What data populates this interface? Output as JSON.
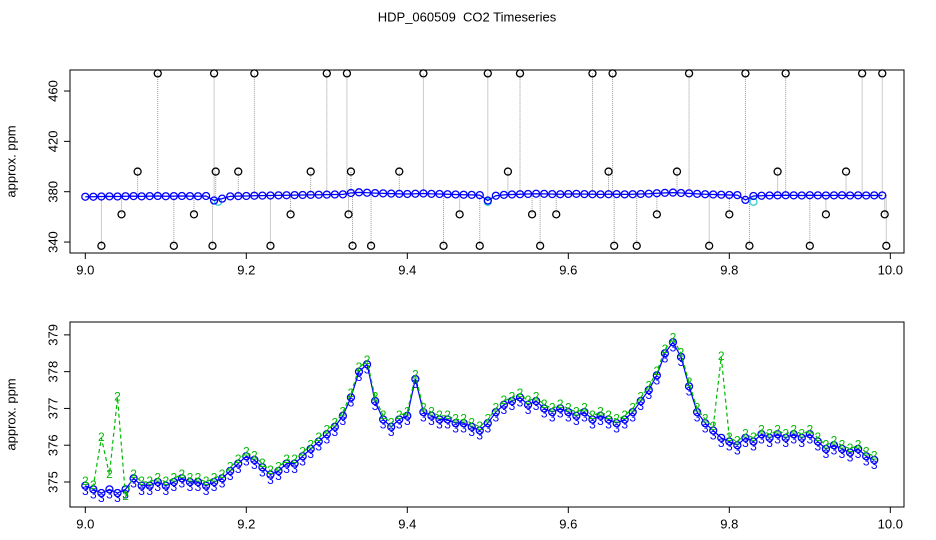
{
  "title": "HDP_060509  CO2 Timeseries",
  "chart_data": [
    {
      "type": "scatter",
      "ylabel": "approx. ppm",
      "xlim": [
        8.981,
        10.017
      ],
      "ylim": [
        331.3,
        476.7
      ],
      "xticks": [
        {
          "value": 9,
          "label": "9.0"
        },
        9.2,
        9.4,
        9.6,
        9.8,
        {
          "value": 10,
          "label": "10.0"
        }
      ],
      "yticks": [
        340,
        380,
        420,
        460
      ],
      "series": [
        {
          "color": "#0000ff",
          "marker": "circle",
          "line": "solid",
          "x": [
            9,
            9.01,
            9.02,
            9.03,
            9.04,
            9.05,
            9.06,
            9.07,
            9.08,
            9.09,
            9.1,
            9.11,
            9.12,
            9.13,
            9.14,
            9.15,
            9.16,
            9.17,
            9.18,
            9.19,
            9.2,
            9.21,
            9.22,
            9.23,
            9.24,
            9.25,
            9.26,
            9.27,
            9.28,
            9.29,
            9.3,
            9.31,
            9.32,
            9.33,
            9.34,
            9.35,
            9.36,
            9.37,
            9.38,
            9.39,
            9.4,
            9.41,
            9.42,
            9.43,
            9.44,
            9.45,
            9.46,
            9.47,
            9.48,
            9.49,
            9.5,
            9.51,
            9.52,
            9.53,
            9.54,
            9.55,
            9.56,
            9.57,
            9.58,
            9.59,
            9.6,
            9.61,
            9.62,
            9.63,
            9.64,
            9.65,
            9.66,
            9.67,
            9.68,
            9.69,
            9.7,
            9.71,
            9.72,
            9.73,
            9.74,
            9.75,
            9.76,
            9.77,
            9.78,
            9.79,
            9.8,
            9.81,
            9.82,
            9.83,
            9.84,
            9.85,
            9.86,
            9.87,
            9.88,
            9.89,
            9.9,
            9.91,
            9.92,
            9.93,
            9.94,
            9.95,
            9.96,
            9.97,
            9.98,
            9.99
          ],
          "values": [
            376,
            376,
            376.2,
            376.3,
            376.2,
            376.4,
            376.5,
            376.3,
            376.5,
            376.6,
            376.4,
            376.5,
            376.6,
            376.5,
            376.4,
            376.6,
            373,
            374.5,
            376.3,
            376.5,
            376.6,
            376.8,
            376.9,
            377,
            377.1,
            377.2,
            377.3,
            377.4,
            377.5,
            377.6,
            377.7,
            377.8,
            377.9,
            379,
            379.5,
            379.2,
            378.9,
            378.7,
            378.5,
            378.3,
            378.2,
            378.4,
            378.6,
            378.3,
            378.2,
            378,
            377.8,
            377.6,
            377.5,
            377.3,
            373,
            376.8,
            377.5,
            377.8,
            378,
            378.2,
            378.4,
            378.3,
            378.1,
            378,
            378.2,
            378.3,
            378.1,
            378,
            377.9,
            378,
            378.1,
            377.9,
            378,
            378.2,
            378.4,
            378.8,
            379.1,
            379.3,
            379,
            378.7,
            378.3,
            378,
            377.8,
            377.6,
            377.4,
            377.3,
            373.5,
            376.6,
            376.8,
            377,
            377.1,
            377.2,
            377.1,
            377,
            377.2,
            377.1,
            377,
            377.1,
            377.2,
            377,
            377.1,
            377,
            377.1,
            377
          ]
        },
        {
          "color": "#000000",
          "marker": "circle",
          "line": null,
          "stems": "#999999",
          "x": [
            9.02,
            9.045,
            9.065,
            9.09,
            9.11,
            9.135,
            9.16,
            9.158,
            9.162,
            9.19,
            9.21,
            9.23,
            9.255,
            9.28,
            9.3,
            9.325,
            9.327,
            9.33,
            9.332,
            9.355,
            9.39,
            9.42,
            9.445,
            9.465,
            9.49,
            9.5,
            9.525,
            9.54,
            9.555,
            9.565,
            9.585,
            9.63,
            9.65,
            9.655,
            9.657,
            9.685,
            9.71,
            9.735,
            9.75,
            9.775,
            9.8,
            9.82,
            9.825,
            9.86,
            9.87,
            9.9,
            9.92,
            9.945,
            9.965,
            9.99,
            9.993,
            9.995
          ],
          "values": [
            337,
            362,
            396,
            474,
            337,
            362,
            474,
            337,
            396,
            396,
            474,
            337,
            362,
            396,
            474,
            474,
            362,
            396,
            337,
            337,
            396,
            474,
            337,
            362,
            337,
            474,
            396,
            474,
            362,
            337,
            362,
            474,
            396,
            474,
            337,
            337,
            362,
            396,
            474,
            337,
            362,
            474,
            337,
            396,
            474,
            337,
            362,
            396,
            474,
            474,
            362,
            337
          ]
        },
        {
          "color": "#33cccc",
          "marker": "circle",
          "line": null,
          "x": [
            9.165,
            9.5,
            9.83
          ],
          "values": [
            372,
            372,
            372
          ]
        }
      ]
    },
    {
      "type": "line",
      "ylabel": "approx. ppm",
      "xlim": [
        8.981,
        10.017
      ],
      "ylim": [
        374.32,
        379.35
      ],
      "xticks": [
        {
          "value": 9,
          "label": "9.0"
        },
        9.2,
        9.4,
        9.6,
        9.8,
        {
          "value": 10,
          "label": "10.0"
        }
      ],
      "yticks": [
        375,
        376,
        377,
        378,
        379
      ],
      "x": [
        9,
        9.01,
        9.02,
        9.03,
        9.04,
        9.05,
        9.06,
        9.07,
        9.08,
        9.09,
        9.1,
        9.11,
        9.12,
        9.13,
        9.14,
        9.15,
        9.16,
        9.17,
        9.18,
        9.19,
        9.2,
        9.21,
        9.22,
        9.23,
        9.24,
        9.25,
        9.26,
        9.27,
        9.28,
        9.29,
        9.3,
        9.31,
        9.32,
        9.33,
        9.34,
        9.35,
        9.36,
        9.37,
        9.38,
        9.39,
        9.4,
        9.41,
        9.42,
        9.43,
        9.44,
        9.45,
        9.46,
        9.47,
        9.48,
        9.49,
        9.5,
        9.51,
        9.52,
        9.53,
        9.54,
        9.55,
        9.56,
        9.57,
        9.58,
        9.59,
        9.6,
        9.61,
        9.62,
        9.63,
        9.64,
        9.65,
        9.66,
        9.67,
        9.68,
        9.69,
        9.7,
        9.71,
        9.72,
        9.73,
        9.74,
        9.75,
        9.76,
        9.77,
        9.78,
        9.79,
        9.8,
        9.81,
        9.82,
        9.83,
        9.84,
        9.85,
        9.86,
        9.87,
        9.88,
        9.89,
        9.9,
        9.91,
        9.92,
        9.93,
        9.94,
        9.95,
        9.96,
        9.97,
        9.98
      ],
      "series": [
        {
          "color": "#00bb00",
          "marker": null,
          "marker_label": "2",
          "line": "dashed",
          "values": [
            375.0,
            374.9,
            376.2,
            375.2,
            377.3,
            374.6,
            375.2,
            375.0,
            375.0,
            375.1,
            375.0,
            375.1,
            375.2,
            375.1,
            375.1,
            375.0,
            375.1,
            375.2,
            375.4,
            375.6,
            375.8,
            375.7,
            375.5,
            375.3,
            375.4,
            375.6,
            375.6,
            375.8,
            376.0,
            376.2,
            376.4,
            376.6,
            376.9,
            377.4,
            378.1,
            378.3,
            377.3,
            376.8,
            376.6,
            376.8,
            376.9,
            377.9,
            377.0,
            376.9,
            376.8,
            376.8,
            376.7,
            376.7,
            376.6,
            376.5,
            376.7,
            377.0,
            377.2,
            377.3,
            377.4,
            377.2,
            377.3,
            377.1,
            377.0,
            377.1,
            377.0,
            376.9,
            377.0,
            376.8,
            376.9,
            376.8,
            376.7,
            376.8,
            377.0,
            377.3,
            377.6,
            378.0,
            378.6,
            378.9,
            378.5,
            377.7,
            377.0,
            376.7,
            376.5,
            378.4,
            376.2,
            376.1,
            376.3,
            376.2,
            376.4,
            376.3,
            376.4,
            376.3,
            376.4,
            376.3,
            376.4,
            376.2,
            376.0,
            376.1,
            376.0,
            375.9,
            376.0,
            375.8,
            375.7
          ]
        },
        {
          "color": "#0000ff",
          "marker": "circle",
          "marker_label": "3",
          "line": "solid",
          "values": [
            374.9,
            374.8,
            374.7,
            374.8,
            374.7,
            374.8,
            375.1,
            374.9,
            374.9,
            375.0,
            374.9,
            375.0,
            375.1,
            375.0,
            375.0,
            374.9,
            375.0,
            375.1,
            375.3,
            375.5,
            375.7,
            375.6,
            375.4,
            375.2,
            375.3,
            375.5,
            375.5,
            375.7,
            375.9,
            376.1,
            376.3,
            376.5,
            376.8,
            377.3,
            378.0,
            378.2,
            377.2,
            376.7,
            376.5,
            376.7,
            376.8,
            377.8,
            376.9,
            376.8,
            376.7,
            376.7,
            376.6,
            376.6,
            376.5,
            376.4,
            376.6,
            376.9,
            377.1,
            377.2,
            377.3,
            377.1,
            377.2,
            377.0,
            376.9,
            377.0,
            376.9,
            376.8,
            376.9,
            376.7,
            376.8,
            376.7,
            376.6,
            376.7,
            376.9,
            377.2,
            377.5,
            377.9,
            378.5,
            378.8,
            378.4,
            377.6,
            376.9,
            376.6,
            376.4,
            376.2,
            376.1,
            376.0,
            376.2,
            376.1,
            376.3,
            376.2,
            376.3,
            376.2,
            376.3,
            376.2,
            376.3,
            376.1,
            375.9,
            376.0,
            375.9,
            375.8,
            375.9,
            375.7,
            375.6
          ]
        }
      ]
    }
  ]
}
